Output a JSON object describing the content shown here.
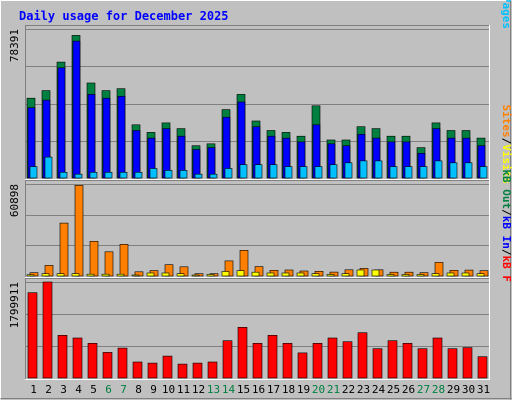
{
  "chart_data": {
    "type": "bar",
    "title": "Daily usage for December 2025",
    "categories": [
      "1",
      "2",
      "3",
      "4",
      "5",
      "6",
      "7",
      "8",
      "9",
      "10",
      "11",
      "12",
      "13",
      "14",
      "15",
      "16",
      "17",
      "18",
      "19",
      "20",
      "21",
      "22",
      "23",
      "24",
      "25",
      "26",
      "27",
      "28",
      "29",
      "30",
      "31"
    ],
    "weekend_days": [
      "6",
      "7",
      "13",
      "14",
      "20",
      "21",
      "27",
      "28"
    ],
    "panels": [
      {
        "id": "pages-files-hits",
        "max_label": "78391",
        "ylim": [
          0,
          78391
        ],
        "legend": [
          {
            "text": "Pages",
            "color": "#00c0ff"
          },
          {
            "text": "/",
            "color": "#000000"
          },
          {
            "text": "Files",
            "color": "#0000ff"
          },
          {
            "text": "/",
            "color": "#000000"
          },
          {
            "text": "Hits",
            "color": "#008040"
          }
        ],
        "series": [
          {
            "name": "Hits",
            "color": "#008040",
            "values": [
              42000,
              46000,
              61000,
              75000,
              50000,
              46000,
              47000,
              28000,
              24000,
              29000,
              26000,
              17000,
              18000,
              36000,
              44000,
              30000,
              25000,
              24000,
              22000,
              38000,
              20000,
              20000,
              27000,
              26000,
              22000,
              22000,
              16000,
              29000,
              25000,
              25000,
              21000
            ]
          },
          {
            "name": "Files",
            "color": "#0000ff",
            "values": [
              37000,
              41000,
              58000,
              72000,
              44000,
              42000,
              43000,
              25000,
              21000,
              26000,
              22000,
              15000,
              16000,
              32000,
              40000,
              27000,
              22000,
              21000,
              19000,
              28000,
              18000,
              17000,
              23000,
              21000,
              19000,
              19000,
              13000,
              26000,
              21000,
              21000,
              17000
            ]
          },
          {
            "name": "Pages",
            "color": "#00c0ff",
            "values": [
              6000,
              11000,
              3000,
              2000,
              3000,
              3000,
              3000,
              3000,
              5000,
              4000,
              4000,
              2000,
              2000,
              5000,
              7000,
              7000,
              7000,
              6000,
              6000,
              6000,
              7000,
              8000,
              9000,
              9000,
              6000,
              6000,
              6000,
              9000,
              8000,
              8000,
              6000
            ]
          }
        ]
      },
      {
        "id": "visits-sites",
        "max_label": "60898",
        "ylim": [
          0,
          60898
        ],
        "legend": [
          {
            "text": "Visits",
            "color": "#ffff00"
          },
          {
            "text": "/",
            "color": "#000000"
          },
          {
            "text": "Sites",
            "color": "#ff8000"
          }
        ],
        "series": [
          {
            "name": "Sites",
            "color": "#ff8000",
            "values": [
              2200,
              7000,
              35000,
              60000,
              23000,
              16000,
              21000,
              2800,
              3600,
              7500,
              6100,
              1500,
              1500,
              10000,
              17000,
              6200,
              3800,
              4000,
              3300,
              3100,
              2600,
              4100,
              5000,
              4100,
              2500,
              2500,
              2200,
              9000,
              3800,
              3900,
              3500
            ]
          },
          {
            "name": "Visits",
            "color": "#ffff00",
            "values": [
              800,
              1500,
              1500,
              1500,
              1200,
              1200,
              1200,
              600,
              2000,
              2000,
              1500,
              600,
              1000,
              3000,
              3500,
              2500,
              2000,
              2000,
              2000,
              1500,
              1000,
              1500,
              4000,
              4000,
              1000,
              1000,
              1000,
              1500,
              2000,
              2000,
              1500
            ]
          }
        ]
      },
      {
        "id": "kb",
        "max_label": "1799911",
        "ylim": [
          0,
          1799911
        ],
        "legend": [
          {
            "text": "kB F",
            "color": "#ff0000"
          },
          {
            "text": "/",
            "color": "#000000"
          },
          {
            "text": "kB In",
            "color": "#0000ff"
          },
          {
            "text": "/",
            "color": "#000000"
          },
          {
            "text": "kB Out",
            "color": "#008040"
          }
        ],
        "series": [
          {
            "name": "kB F",
            "color": "#ff0000",
            "values": [
              1600000,
              1800000,
              800000,
              750000,
              650000,
              480000,
              560000,
              300000,
              280000,
              410000,
              260000,
              280000,
              300000,
              700000,
              950000,
              650000,
              800000,
              650000,
              470000,
              650000,
              750000,
              680000,
              850000,
              550000,
              700000,
              650000,
              550000,
              750000,
              550000,
              570000,
              400000
            ]
          }
        ]
      }
    ]
  },
  "colors": {
    "background": "#c0c0c0",
    "frame_light": "#ffffff",
    "frame_dark": "#808080",
    "gridline": "#808080",
    "title": "#0000ff",
    "weekday_label": "#000000",
    "weekend_label": "#008040"
  }
}
